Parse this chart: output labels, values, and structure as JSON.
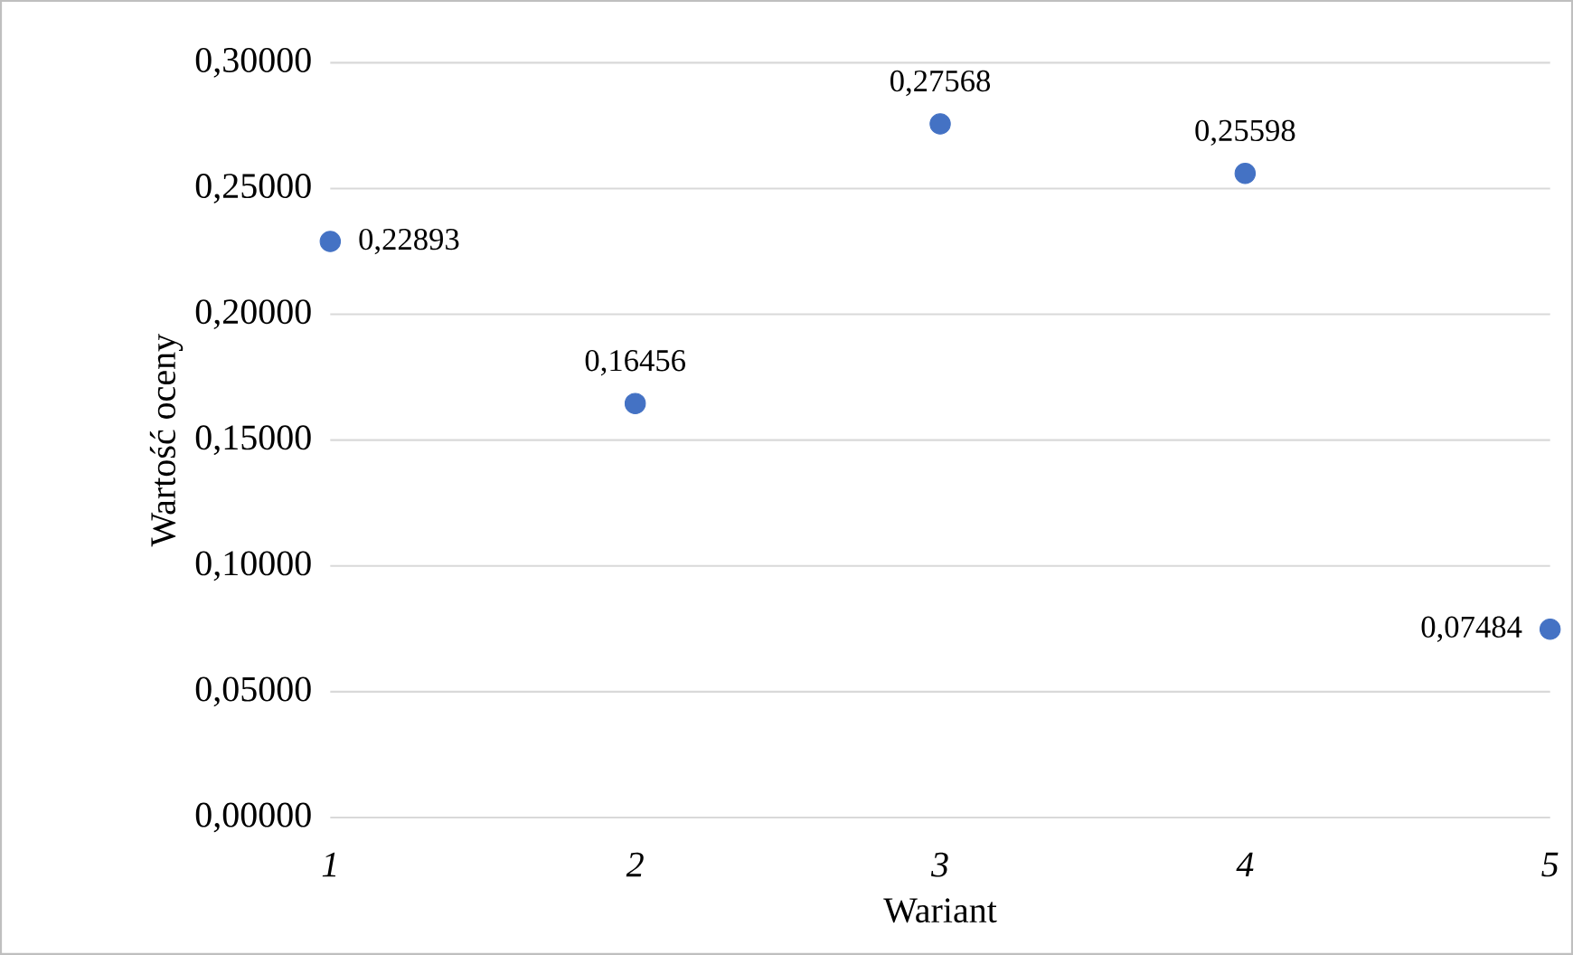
{
  "chart_data": {
    "type": "scatter",
    "xlabel": "Wariant",
    "ylabel": "Wartość oceny",
    "x": [
      1,
      2,
      3,
      4,
      5
    ],
    "values": [
      0.22893,
      0.16456,
      0.27568,
      0.25598,
      0.07484
    ],
    "value_labels": [
      "0,22893",
      "0,16456",
      "0,27568",
      "0,25598",
      "0,07484"
    ],
    "color": "#4472c4",
    "marker": "circle",
    "grid": "y",
    "xlim": [
      1,
      5
    ],
    "xticks": [
      1,
      2,
      3,
      4,
      5
    ],
    "ylim": [
      0,
      0.3
    ],
    "yticks": [
      {
        "value": 0,
        "label": "0,00000"
      },
      {
        "value": 0.05,
        "label": "0,05000"
      },
      {
        "value": 0.1,
        "label": "0,10000"
      },
      {
        "value": 0.15,
        "label": "0,15000"
      },
      {
        "value": 0.2,
        "label": "0,20000"
      },
      {
        "value": 0.25,
        "label": "0,25000"
      },
      {
        "value": 0.3,
        "label": "0,30000"
      }
    ]
  }
}
